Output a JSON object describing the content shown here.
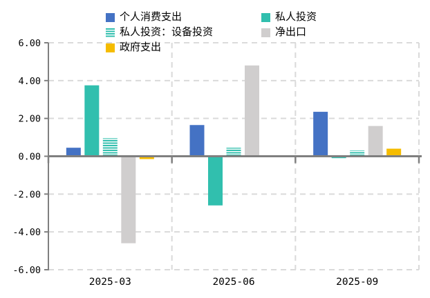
{
  "chart_data": {
    "type": "bar",
    "title": "",
    "xlabel": "",
    "ylabel": "",
    "categories": [
      "2025-03",
      "2025-06",
      "2025-09"
    ],
    "series": [
      {
        "name": "个人消费支出",
        "color": "#4472C4",
        "pattern": "solid",
        "values": [
          0.45,
          1.65,
          2.35
        ]
      },
      {
        "name": "私人投资",
        "color": "#31BFAE",
        "pattern": "solid",
        "values": [
          3.75,
          -2.6,
          -0.1
        ]
      },
      {
        "name": "私人投资：设备投资",
        "color": "#31BFAE",
        "pattern": "hstripe",
        "values": [
          0.95,
          0.45,
          0.3
        ]
      },
      {
        "name": "净出口",
        "color": "#D0CECE",
        "pattern": "solid",
        "values": [
          -4.6,
          4.8,
          1.6
        ]
      },
      {
        "name": "政府支出",
        "color": "#F5BC00",
        "pattern": "solid",
        "values": [
          -0.15,
          -0.05,
          0.4
        ]
      }
    ],
    "ylim": [
      -6,
      6
    ],
    "ytick_values": [
      6,
      4,
      2,
      0,
      -2,
      -4,
      -6
    ],
    "yticks": [
      "6.00",
      "4.00",
      "2.00",
      "0.00",
      "-2.00",
      "-4.00",
      "-6.00"
    ],
    "grid": "dashed horizontal and vertical category separators",
    "legend_position": "top"
  },
  "colors": {
    "background": "#FFFFFF",
    "axis": "#7F7F7F",
    "grid": "#DADADA",
    "text": "#000000"
  }
}
